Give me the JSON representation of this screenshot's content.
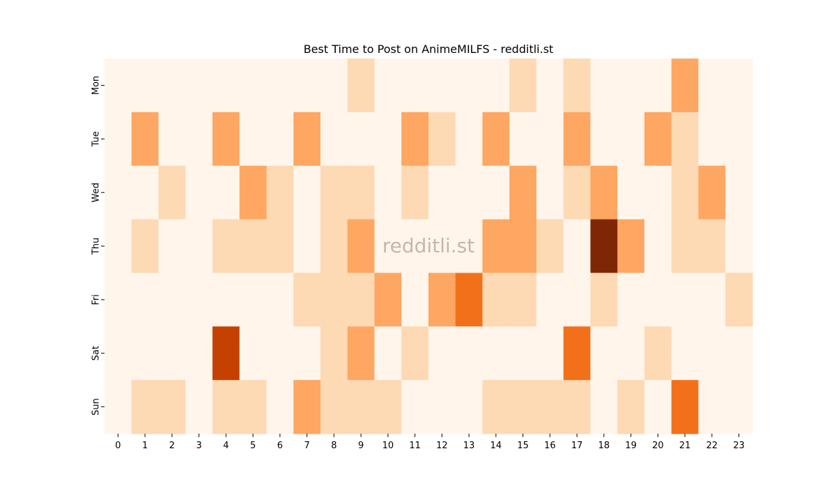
{
  "chart_data": {
    "type": "heatmap",
    "title": "Best Time to Post on AnimeMILFS - redditli.st",
    "watermark": "redditli.st",
    "x_categories": [
      "0",
      "1",
      "2",
      "3",
      "4",
      "5",
      "6",
      "7",
      "8",
      "9",
      "10",
      "11",
      "12",
      "13",
      "14",
      "15",
      "16",
      "17",
      "18",
      "19",
      "20",
      "21",
      "22",
      "23"
    ],
    "y_categories": [
      "Mon",
      "Tue",
      "Wed",
      "Thu",
      "Fri",
      "Sat",
      "Sun"
    ],
    "colormap": "Oranges",
    "values": [
      [
        0,
        0,
        0,
        0,
        0,
        0,
        0,
        0,
        0,
        1,
        0,
        0,
        0,
        0,
        0,
        1,
        0,
        1,
        0,
        0,
        0,
        2,
        0,
        0
      ],
      [
        0,
        2,
        0,
        0,
        2,
        0,
        0,
        2,
        0,
        0,
        0,
        2,
        1,
        0,
        2,
        0,
        0,
        2,
        0,
        0,
        2,
        1,
        0,
        0
      ],
      [
        0,
        0,
        1,
        0,
        0,
        2,
        1,
        0,
        1,
        1,
        0,
        1,
        0,
        0,
        0,
        2,
        0,
        1,
        2,
        0,
        0,
        1,
        2,
        0
      ],
      [
        0,
        1,
        0,
        0,
        1,
        1,
        1,
        0,
        1,
        2,
        0,
        0,
        0,
        0,
        2,
        2,
        1,
        0,
        6,
        2,
        0,
        1,
        1,
        0
      ],
      [
        0,
        0,
        0,
        0,
        0,
        0,
        0,
        1,
        1,
        1,
        2,
        0,
        2,
        3,
        1,
        1,
        0,
        0,
        1,
        0,
        0,
        0,
        0,
        1
      ],
      [
        0,
        0,
        0,
        0,
        4,
        0,
        0,
        0,
        1,
        2,
        0,
        1,
        0,
        0,
        0,
        0,
        0,
        3,
        0,
        0,
        1,
        0,
        0,
        0
      ],
      [
        0,
        1,
        1,
        0,
        1,
        1,
        0,
        2,
        1,
        1,
        1,
        0,
        0,
        0,
        1,
        1,
        1,
        1,
        0,
        1,
        0,
        3,
        0,
        0
      ]
    ],
    "color_levels": [
      "#fff5eb",
      "#fdd9b4",
      "#fda762",
      "#f3701b",
      "#c54102",
      "#a33503",
      "#7f2704"
    ]
  }
}
